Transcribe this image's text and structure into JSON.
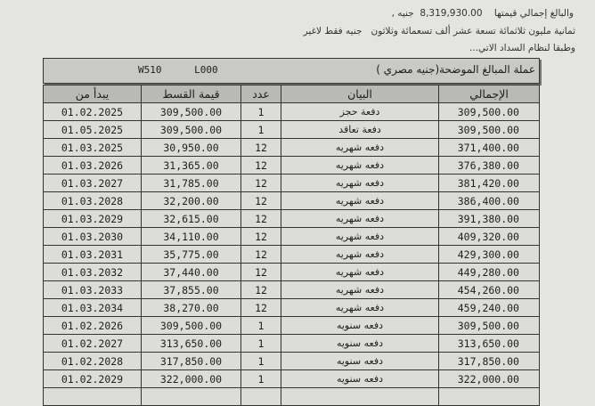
{
  "intro": {
    "line1": "والبالغ إجمالي قيمتها    8,319,930.00  جنيه ,",
    "line2": "ثمانية مليون ثلاثمائة تسعة عشر ألف تسعمائة وثلاثون   جنيه فقط لاغير",
    "line3": "وطبقا لنظام السداد الاتي..."
  },
  "currency_bar": {
    "label": "عملة المبالغ الموضحة(جنيه مصري  )",
    "codes": "W510 L000"
  },
  "table": {
    "headers": {
      "start": "يبدأ من",
      "installment": "قيمة القسط",
      "count": "عدد",
      "description": "البيان",
      "total": "الإجمالي"
    },
    "rows": [
      {
        "start": "01.02.2025",
        "installment": "309,500.00",
        "count": "1",
        "description": "دفعة حجز",
        "total": "309,500.00"
      },
      {
        "start": "01.05.2025",
        "installment": "309,500.00",
        "count": "1",
        "description": "دفعة تعاقد",
        "total": "309,500.00"
      },
      {
        "start": "01.03.2025",
        "installment": "30,950.00",
        "count": "12",
        "description": "دفعه شهريه",
        "total": "371,400.00"
      },
      {
        "start": "01.03.2026",
        "installment": "31,365.00",
        "count": "12",
        "description": "دفعه شهريه",
        "total": "376,380.00"
      },
      {
        "start": "01.03.2027",
        "installment": "31,785.00",
        "count": "12",
        "description": "دفعه شهريه",
        "total": "381,420.00"
      },
      {
        "start": "01.03.2028",
        "installment": "32,200.00",
        "count": "12",
        "description": "دفعه شهريه",
        "total": "386,400.00"
      },
      {
        "start": "01.03.2029",
        "installment": "32,615.00",
        "count": "12",
        "description": "دفعه شهريه",
        "total": "391,380.00"
      },
      {
        "start": "01.03.2030",
        "installment": "34,110.00",
        "count": "12",
        "description": "دفعه شهريه",
        "total": "409,320.00"
      },
      {
        "start": "01.03.2031",
        "installment": "35,775.00",
        "count": "12",
        "description": "دفعه شهريه",
        "total": "429,300.00"
      },
      {
        "start": "01.03.2032",
        "installment": "37,440.00",
        "count": "12",
        "description": "دفعه شهريه",
        "total": "449,280.00"
      },
      {
        "start": "01.03.2033",
        "installment": "37,855.00",
        "count": "12",
        "description": "دفعه شهريه",
        "total": "454,260.00"
      },
      {
        "start": "01.03.2034",
        "installment": "38,270.00",
        "count": "12",
        "description": "دفعه شهريه",
        "total": "459,240.00"
      },
      {
        "start": "01.02.2026",
        "installment": "309,500.00",
        "count": "1",
        "description": "دفعه سنويه",
        "total": "309,500.00"
      },
      {
        "start": "01.02.2027",
        "installment": "313,650.00",
        "count": "1",
        "description": "دفعه سنويه",
        "total": "313,650.00"
      },
      {
        "start": "01.02.2028",
        "installment": "317,850.00",
        "count": "1",
        "description": "دفعه سنويه",
        "total": "317,850.00"
      },
      {
        "start": "01.02.2029",
        "installment": "322,000.00",
        "count": "1",
        "description": "دفعه سنويه",
        "total": "322,000.00"
      }
    ]
  }
}
